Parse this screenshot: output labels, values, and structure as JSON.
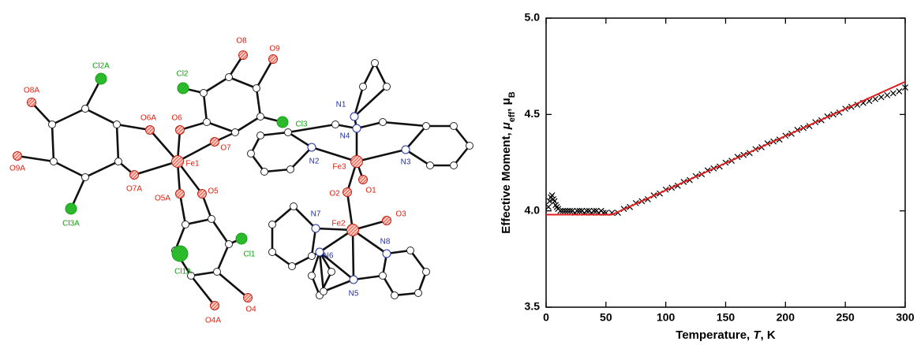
{
  "molecule": {
    "atoms": [
      "Cl2A",
      "O8A",
      "O9A",
      "Cl3A",
      "O6A",
      "O7A",
      "Fe1",
      "O6",
      "O7",
      "O5A",
      "O5",
      "Cl2",
      "O8",
      "O9",
      "Cl3",
      "Cl1A",
      "Cl1",
      "O4A",
      "O4",
      "N1",
      "N4",
      "N2",
      "Fe3",
      "N3",
      "O2",
      "O1",
      "Fe2",
      "O3",
      "N7",
      "N6",
      "N8",
      "N5"
    ]
  },
  "chart_data": {
    "type": "scatter",
    "xlabel_parts": [
      "Temperature, ",
      "T",
      ", K"
    ],
    "ylabel_parts": [
      "Effective Moment, ",
      "μ",
      "eff",
      ", μ",
      "B"
    ],
    "xlim": [
      0,
      300
    ],
    "xticks": [
      0,
      50,
      100,
      150,
      200,
      250,
      300
    ],
    "ylim": [
      3.5,
      5.0
    ],
    "yticks": [
      3.5,
      {
        "value": 4,
        "label": "4.0"
      },
      4.5,
      {
        "value": 5,
        "label": "5.0"
      }
    ],
    "series": [
      {
        "color": "#000000",
        "marker": "x",
        "x": [
          2,
          3,
          4,
          5,
          6,
          7,
          8,
          9,
          10,
          12,
          14,
          16,
          18,
          20,
          22,
          24,
          26,
          28,
          30,
          32,
          34,
          36,
          38,
          40,
          42,
          44,
          46,
          48,
          50,
          55,
          60,
          65,
          70,
          75,
          80,
          85,
          90,
          95,
          100,
          105,
          110,
          115,
          120,
          125,
          130,
          135,
          140,
          145,
          150,
          155,
          160,
          165,
          170,
          175,
          180,
          185,
          190,
          195,
          200,
          205,
          210,
          215,
          220,
          225,
          230,
          235,
          240,
          245,
          250,
          255,
          260,
          265,
          270,
          275,
          280,
          285,
          290,
          295,
          300
        ],
        "values": [
          4.02,
          4.05,
          4.07,
          4.08,
          4.06,
          4.05,
          4.03,
          4.02,
          4.01,
          4.0,
          4.0,
          4.0,
          4.0,
          4.0,
          4.0,
          3.99,
          4.0,
          4.0,
          4.0,
          3.99,
          4.0,
          4.0,
          3.99,
          4.0,
          4.0,
          3.99,
          4.0,
          3.99,
          3.99,
          3.99,
          3.99,
          4.01,
          4.02,
          4.04,
          4.05,
          4.06,
          4.08,
          4.09,
          4.11,
          4.12,
          4.13,
          4.15,
          4.16,
          4.18,
          4.19,
          4.21,
          4.22,
          4.23,
          4.25,
          4.26,
          4.28,
          4.29,
          4.3,
          4.32,
          4.33,
          4.35,
          4.36,
          4.37,
          4.39,
          4.4,
          4.42,
          4.43,
          4.44,
          4.46,
          4.47,
          4.49,
          4.5,
          4.51,
          4.53,
          4.54,
          4.55,
          4.56,
          4.57,
          4.58,
          4.59,
          4.6,
          4.61,
          4.62,
          4.64
        ]
      },
      {
        "color": "#e02020",
        "marker": "line",
        "x": [
          0,
          55,
          300
        ],
        "values": [
          3.98,
          3.98,
          4.67
        ]
      }
    ]
  }
}
